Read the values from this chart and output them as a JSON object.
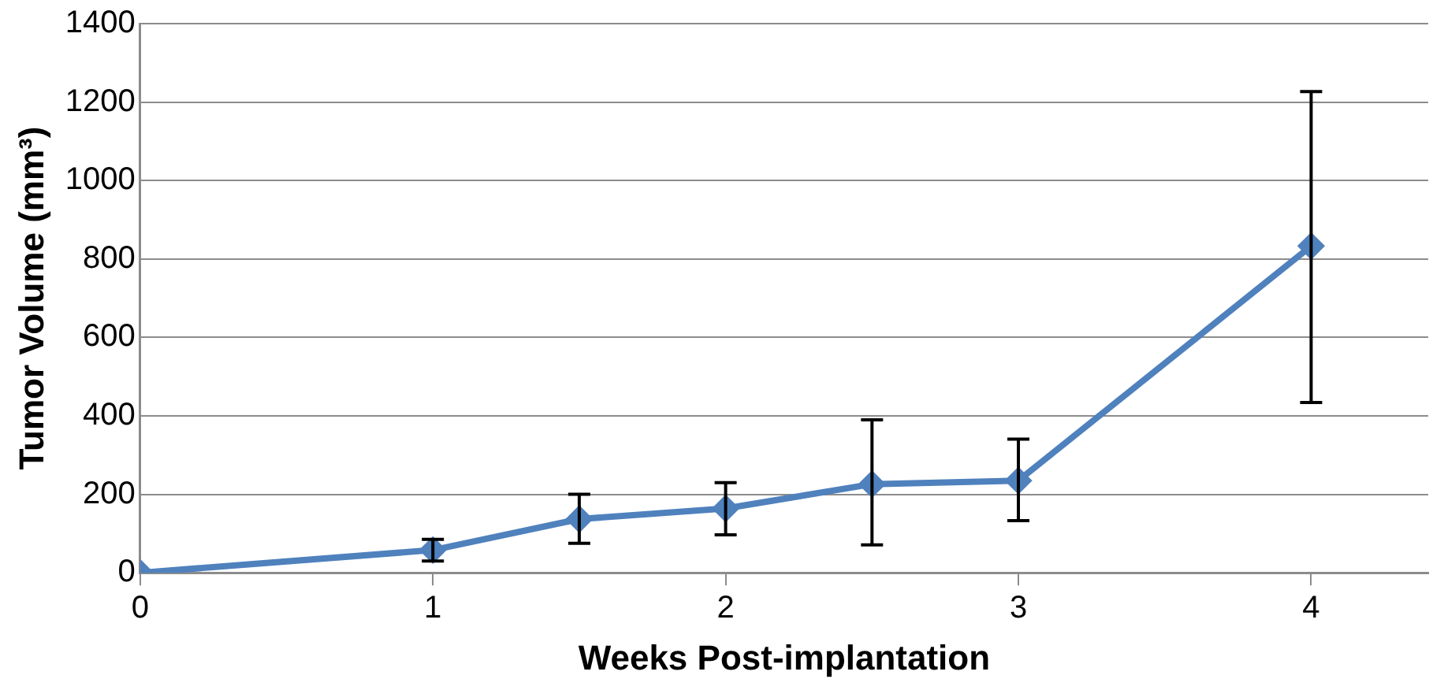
{
  "chart_data": {
    "type": "line",
    "xlabel": "Weeks Post-implantation",
    "ylabel": "Tumor Volume (mm³)",
    "x": [
      0,
      1,
      1.5,
      2,
      2.5,
      3,
      4
    ],
    "series": [
      {
        "color": "#4f81bd",
        "values": [
          0,
          58,
          137,
          164,
          226,
          235,
          833
        ],
        "errors": [
          null,
          [
            30,
            85
          ],
          [
            75,
            200
          ],
          [
            97,
            230
          ],
          [
            71,
            390
          ],
          [
            133,
            341
          ],
          [
            434,
            1227
          ]
        ]
      }
    ],
    "xlim": [
      0,
      4.4
    ],
    "xticks": [
      0,
      1,
      2,
      3,
      4
    ],
    "ylim": [
      0,
      1400
    ],
    "yticks": [
      0,
      200,
      400,
      600,
      800,
      1000,
      1200,
      1400
    ],
    "grid": "y",
    "legend": false,
    "marker": "diamond",
    "line_style": "solid"
  }
}
